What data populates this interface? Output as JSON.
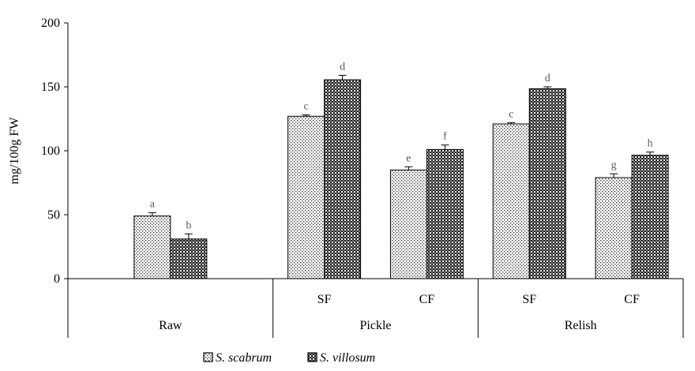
{
  "chart_data": {
    "type": "bar",
    "title": "",
    "ylabel": "mg/100g FW",
    "xlabel": "",
    "ylim": [
      0,
      200
    ],
    "yticks": [
      0,
      50,
      100,
      150,
      200
    ],
    "grid": false,
    "legend_position": "bottom",
    "categories": [
      {
        "sub": "",
        "group": "Raw"
      },
      {
        "sub": "SF",
        "group": "Pickle"
      },
      {
        "sub": "CF",
        "group": "Pickle"
      },
      {
        "sub": "SF",
        "group": "Relish"
      },
      {
        "sub": "CF",
        "group": "Relish"
      }
    ],
    "groups": [
      "Raw",
      "Pickle",
      "Relish"
    ],
    "series": [
      {
        "name": "S. scabrum",
        "pattern": "dots",
        "values": [
          49,
          127,
          85,
          121,
          79
        ],
        "errors": [
          2.5,
          1,
          2.5,
          1,
          3
        ],
        "labels": [
          "a",
          "c",
          "e",
          "c",
          "g"
        ]
      },
      {
        "name": "S. villosum",
        "pattern": "crosshatch",
        "values": [
          31,
          155.5,
          101,
          148.5,
          96.5
        ],
        "errors": [
          4,
          3.5,
          3.5,
          1.5,
          2.5
        ],
        "labels": [
          "b",
          "d",
          "f",
          "d",
          "h"
        ]
      }
    ],
    "legend_marker": "⊡"
  }
}
